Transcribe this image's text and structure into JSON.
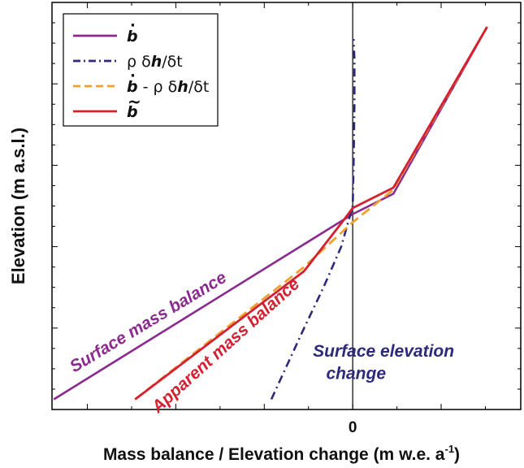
{
  "chart_data": {
    "type": "line",
    "title": "",
    "xlabel": "Mass balance / Elevation change (m w.e. a",
    "xlabel_sup": "-1",
    "xlabel_close": ")",
    "ylabel": "Elevation (m a.s.l.)",
    "xlim": [
      -3.4,
      1.9
    ],
    "ylim": [
      0,
      10
    ],
    "x_ticks": [
      {
        "value": 0,
        "label": "0"
      }
    ],
    "y_tick_labels_shown": false,
    "grid": false,
    "legend_placement": "top-left",
    "series": [
      {
        "key": "b",
        "legend": {
          "symbol": "b",
          "dot": "·",
          "tilde": "",
          "text": ""
        },
        "color": "#8B2A8F",
        "dash": "solid",
        "points": [
          [
            -3.38,
            0.25
          ],
          [
            0.0,
            4.8
          ],
          [
            0.46,
            5.3
          ],
          [
            1.52,
            9.4
          ]
        ]
      },
      {
        "key": "rho_dh_dt",
        "legend": {
          "symbol": "",
          "dot": "",
          "tilde": "",
          "text": "ρ δ",
          "h": "h",
          "tail": "/δt"
        },
        "color": "#2E2A7A",
        "dash": "dashdot",
        "points": [
          [
            -0.92,
            0.25
          ],
          [
            -0.55,
            2.0
          ],
          [
            -0.33,
            3.0
          ],
          [
            -0.13,
            4.0
          ],
          [
            0.0,
            5.0
          ],
          [
            0.01,
            6.0
          ],
          [
            0.02,
            7.5
          ],
          [
            0.02,
            8.6
          ],
          [
            0.01,
            9.1
          ]
        ]
      },
      {
        "key": "b_minus_rho",
        "legend": {
          "symbol": "b",
          "dot": "·",
          "tilde": "",
          "text": " - ρ δ",
          "h": "h",
          "tail": "/δt"
        },
        "color": "#F0A030",
        "dash": "dashed",
        "points": [
          [
            -2.46,
            0.25
          ],
          [
            -0.55,
            3.5
          ],
          [
            0.0,
            4.6
          ],
          [
            0.46,
            5.4
          ],
          [
            1.52,
            9.4
          ]
        ]
      },
      {
        "key": "b_tilde",
        "legend": {
          "symbol": "b",
          "dot": "",
          "tilde": "~",
          "text": ""
        },
        "color": "#D42030",
        "dash": "solid",
        "points": [
          [
            -2.46,
            0.25
          ],
          [
            -0.55,
            3.4
          ],
          [
            -0.12,
            4.6
          ],
          [
            0.0,
            4.95
          ],
          [
            0.46,
            5.45
          ],
          [
            1.52,
            9.4
          ]
        ]
      }
    ],
    "annotations": [
      {
        "text": "Surface mass balance",
        "color": "#8B2A8F",
        "x": -3.15,
        "y": 0.9,
        "rotate": -31
      },
      {
        "text": "Apparent mass balance",
        "color": "#D42030",
        "x": -2.2,
        "y": -0.1,
        "rotate": -42
      },
      {
        "text": "Surface elevation",
        "color": "#2E2A7A",
        "x": -0.45,
        "y": 1.3,
        "rotate": 0
      },
      {
        "text": "change",
        "color": "#2E2A7A",
        "x": -0.3,
        "y": 0.75,
        "rotate": 0
      }
    ]
  }
}
